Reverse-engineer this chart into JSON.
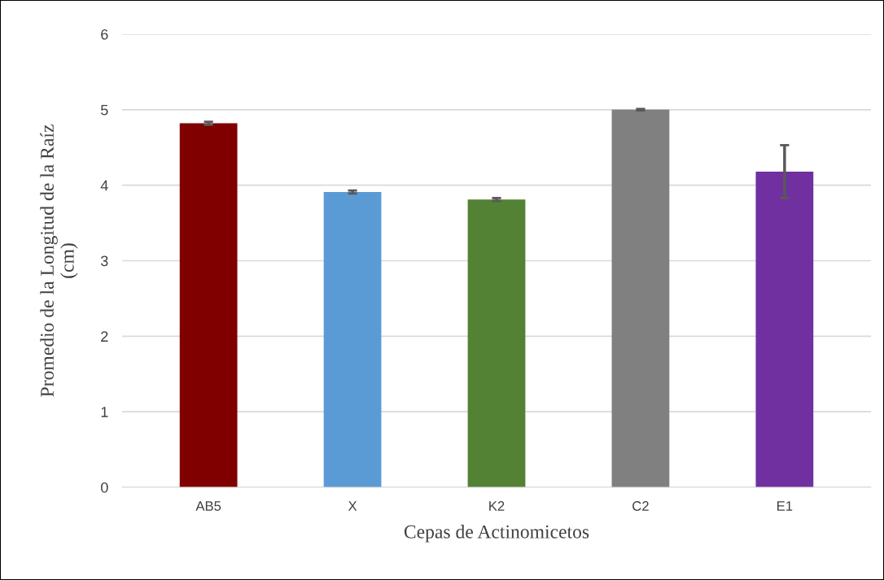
{
  "chart_data": {
    "type": "bar",
    "xlabel": "Cepas de Actinomicetos",
    "ylabel": "Promedio de la Longitud de la Raíz\n(cm)",
    "categories": [
      "AB5",
      "X",
      "K2",
      "C2",
      "E1"
    ],
    "values": [
      4.82,
      3.91,
      3.81,
      5.0,
      4.18
    ],
    "errors": [
      0.02,
      0.02,
      0.02,
      0.01,
      0.35
    ],
    "colors": [
      "#800000",
      "#5b9bd5",
      "#548235",
      "#808080",
      "#7030a0"
    ],
    "ylim": [
      0,
      6
    ],
    "yticks": [
      0,
      1,
      2,
      3,
      4,
      5,
      6
    ],
    "grid": "y"
  }
}
